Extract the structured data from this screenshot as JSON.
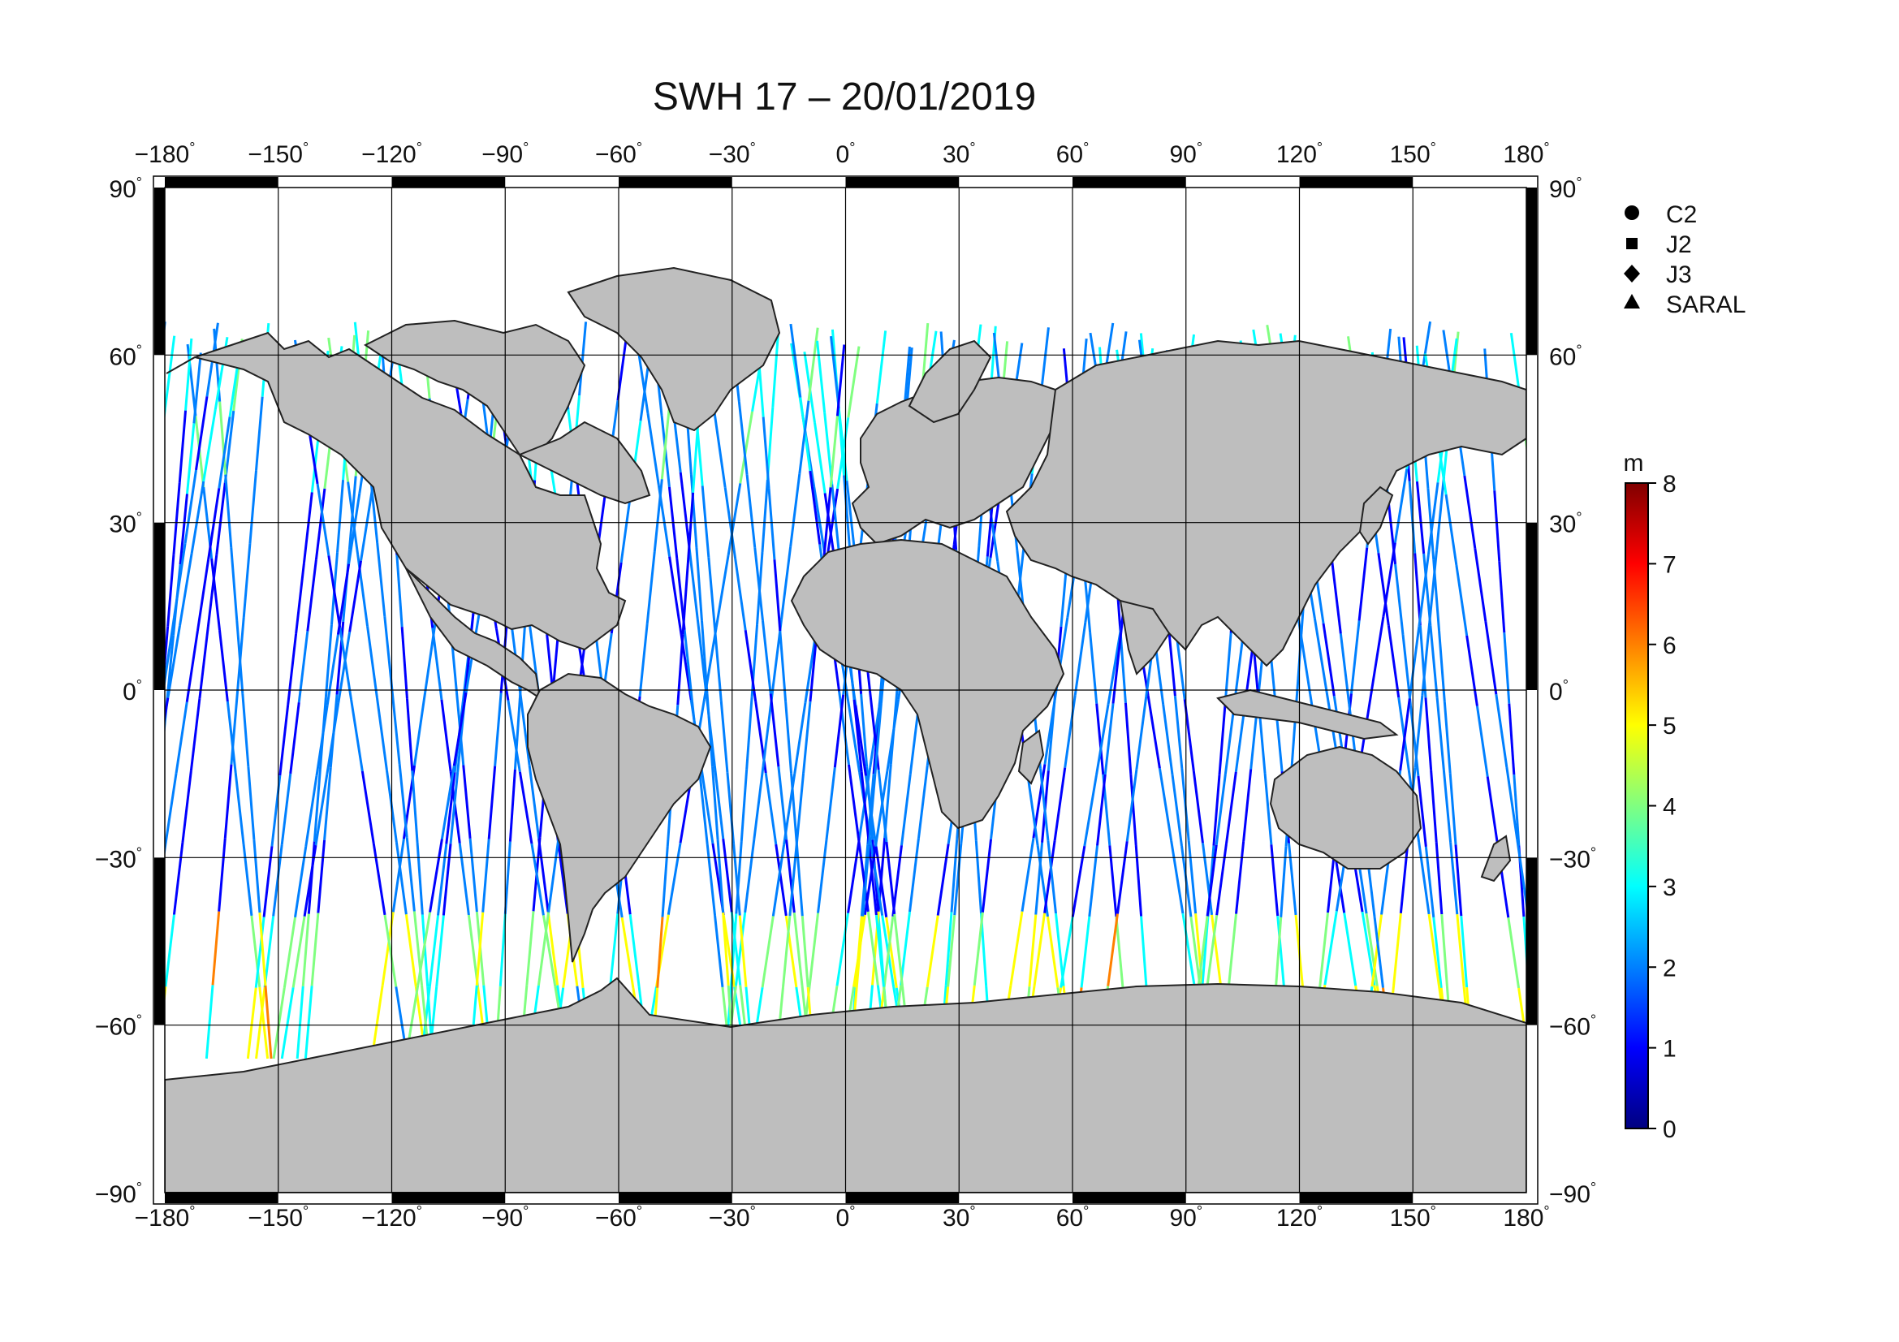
{
  "title": "SWH 17 – 20/01/2019",
  "map": {
    "lon_ticks": [
      "−180",
      "−150",
      "−120",
      "−90",
      "−60",
      "−30",
      "0",
      "30",
      "60",
      "90",
      "120",
      "150",
      "180"
    ],
    "lat_ticks": [
      "90",
      "60",
      "30",
      "0",
      "−30",
      "−60",
      "−90"
    ],
    "lon_range": [
      -180,
      180
    ],
    "lat_range": [
      -90,
      90
    ],
    "land_color": "#bebebe",
    "ocean_color": "#ffffff",
    "grid": true
  },
  "satellites": [
    {
      "name": "C2",
      "marker": "circle"
    },
    {
      "name": "J2",
      "marker": "square"
    },
    {
      "name": "J3",
      "marker": "diamond"
    },
    {
      "name": "SARAL",
      "marker": "triangle"
    }
  ],
  "colorbar": {
    "unit": "m",
    "ticks": [
      "0",
      "1",
      "2",
      "3",
      "4",
      "5",
      "6",
      "7",
      "8"
    ],
    "range": [
      0,
      8
    ],
    "colors": [
      "#000080",
      "#0000ff",
      "#0080ff",
      "#00ffff",
      "#80ff80",
      "#ffff00",
      "#ff8000",
      "#ff0000",
      "#800000"
    ]
  }
}
